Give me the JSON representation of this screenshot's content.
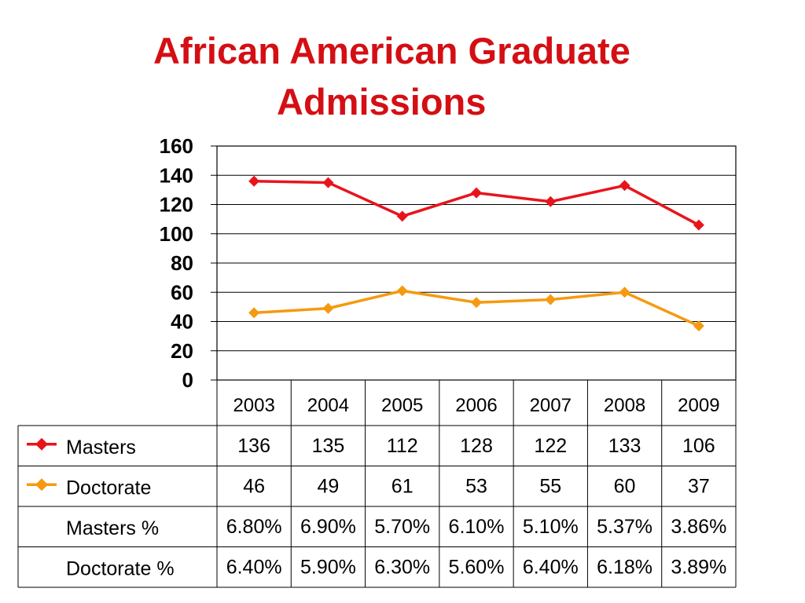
{
  "title_lines": [
    "African American Graduate",
    "Admissions"
  ],
  "colors": {
    "title": "#d40f14",
    "masters": "#e8141c",
    "doctorate": "#f59a10",
    "grid": "#000000"
  },
  "chart_data": {
    "type": "line",
    "title": "African American Graduate Admissions",
    "categories": [
      "2003",
      "2004",
      "2005",
      "2006",
      "2007",
      "2008",
      "2009"
    ],
    "ylim": [
      0,
      160
    ],
    "yticks": [
      "0",
      "20",
      "40",
      "60",
      "80",
      "100",
      "120",
      "140",
      "160"
    ],
    "grid": true,
    "legend": "left-in-table",
    "series": [
      {
        "name": "Masters",
        "values": [
          136,
          135,
          112,
          128,
          122,
          133,
          106
        ],
        "marker": "diamond"
      },
      {
        "name": "Doctorate",
        "values": [
          46,
          49,
          61,
          53,
          55,
          60,
          37
        ],
        "marker": "diamond"
      }
    ],
    "table": {
      "rows": [
        {
          "label": "Masters",
          "cells": [
            "136",
            "135",
            "112",
            "128",
            "122",
            "133",
            "106"
          ],
          "legend_key": true
        },
        {
          "label": "Doctorate",
          "cells": [
            "46",
            "49",
            "61",
            "53",
            "55",
            "60",
            "37"
          ],
          "legend_key": true
        },
        {
          "label": "Masters %",
          "cells": [
            "6.80%",
            "6.90%",
            "5.70%",
            "6.10%",
            "5.10%",
            "5.37%",
            "3.86%"
          ],
          "legend_key": false
        },
        {
          "label": "Doctorate %",
          "cells": [
            "6.40%",
            "5.90%",
            "6.30%",
            "5.60%",
            "6.40%",
            "6.18%",
            "3.89%"
          ],
          "legend_key": false
        }
      ]
    }
  }
}
